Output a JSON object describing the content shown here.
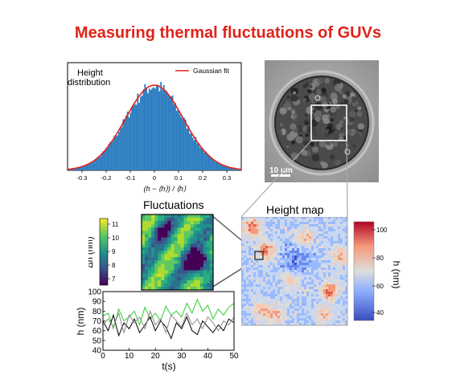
{
  "title": "Measuring thermal fluctuations of GUVs",
  "histogram": {
    "label_line1": "Height",
    "label_line2": "distribution",
    "legend": "Gaussian fit",
    "xlabel": "(h − ⟨h⟩) / ⟨h⟩",
    "xticks": [
      "-0.3",
      "-0.2",
      "-0.1",
      "0",
      "0.1",
      "0.2",
      "0.3"
    ],
    "bar_color": "#2f7fc1",
    "fit_color": "#e0231a"
  },
  "micrograph": {
    "scalebar": "10 μm"
  },
  "fluctuations": {
    "title": "Fluctuations",
    "cbar_label": "Δh (nm)",
    "cbar_ticks": [
      "11",
      "10",
      "9",
      "8",
      "7"
    ]
  },
  "heightmap": {
    "title": "Height map",
    "cbar_label": "h (nm)",
    "cbar_ticks": [
      "100",
      "80",
      "60",
      "40"
    ]
  },
  "chart_data": {
    "type": "line",
    "xlabel": "t(s)",
    "ylabel": "h (nm)",
    "xlim": [
      0,
      50
    ],
    "ylim": [
      40,
      100
    ],
    "xticks": [
      "0",
      "10",
      "20",
      "30",
      "40",
      "50"
    ],
    "yticks": [
      "100",
      "90",
      "80",
      "70",
      "60",
      "50",
      "40"
    ],
    "series": [
      {
        "color": "#2ecc2e",
        "x": [
          0,
          2,
          4,
          6,
          8,
          10,
          12,
          14,
          16,
          18,
          20,
          22,
          24,
          26,
          28,
          30,
          32,
          34,
          36,
          38,
          40,
          42,
          44,
          46,
          48,
          50
        ],
        "y": [
          75,
          78,
          62,
          82,
          70,
          74,
          80,
          66,
          84,
          72,
          78,
          70,
          85,
          76,
          80,
          74,
          88,
          78,
          92,
          80,
          86,
          72,
          82,
          76,
          84,
          88
        ]
      },
      {
        "color": "#000000",
        "x": [
          0,
          2,
          4,
          6,
          8,
          10,
          12,
          14,
          16,
          18,
          20,
          22,
          24,
          26,
          28,
          30,
          32,
          34,
          36,
          38,
          40,
          42,
          44,
          46,
          48,
          50
        ],
        "y": [
          70,
          60,
          76,
          55,
          68,
          62,
          72,
          58,
          66,
          74,
          60,
          70,
          64,
          52,
          68,
          62,
          74,
          60,
          56,
          70,
          64,
          58,
          66,
          60,
          72,
          68
        ]
      },
      {
        "color": "#8a8a8a",
        "x": [
          0,
          2,
          4,
          6,
          8,
          10,
          12,
          14,
          16,
          18,
          20,
          22,
          24,
          26,
          28,
          30,
          32,
          34,
          36,
          38,
          40,
          42,
          44,
          46,
          48,
          50
        ],
        "y": [
          66,
          72,
          64,
          78,
          58,
          76,
          68,
          74,
          62,
          80,
          66,
          72,
          58,
          76,
          70,
          64,
          78,
          66,
          72,
          62,
          74,
          68,
          60,
          70,
          66,
          74
        ]
      }
    ]
  }
}
